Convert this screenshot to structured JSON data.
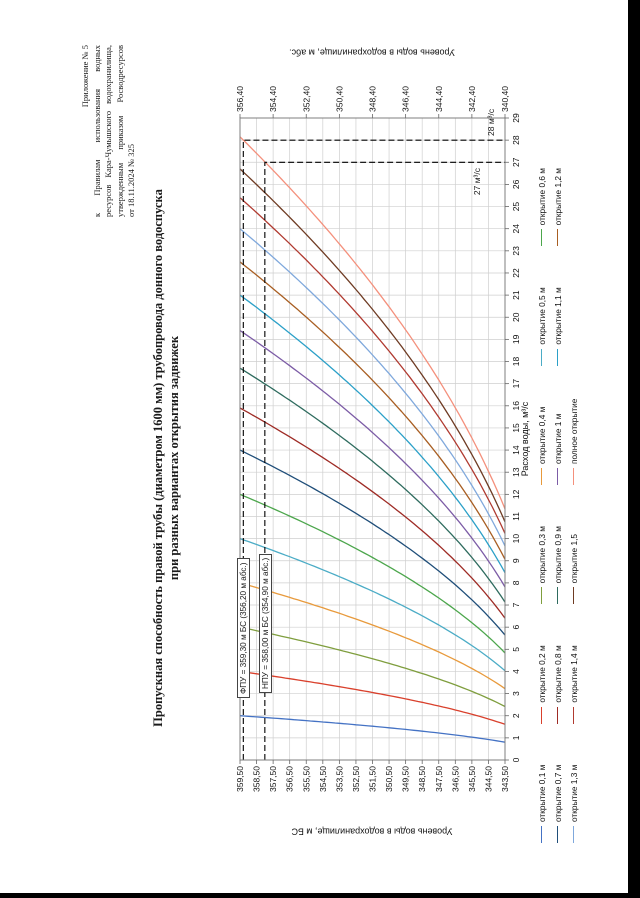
{
  "page": {
    "header_lines": [
      "Приложение № 5",
      "к Правилам использования водных",
      "ресурсов Кара-Чумышского водохранилища,",
      "утвержденным приказом Росводресурсов",
      "от 18.11.2024 № 325"
    ],
    "title_line1": "Пропускная способность правой трубы (диаметром 1600 мм) трубопровода донного водоспуска",
    "title_line2": "при разных вариантах открытия задвижек"
  },
  "chart_data": {
    "type": "line",
    "title": "Пропускная способность правой трубы (диаметром 1600 мм) трубопровода донного водоспуска при разных вариантах открытия задвижек",
    "xlabel": "Расход воды, м³/с",
    "ylabel_left": "Уровень воды в водохранилище, м БС",
    "ylabel_right": "Уровень воды в водохранилище, м абс.",
    "xlim": [
      0,
      29
    ],
    "ylim_left": [
      343.5,
      359.5
    ],
    "ylim_right": [
      340.4,
      356.4
    ],
    "grid": true,
    "legend_position": "bottom",
    "x_ticks": [
      "0",
      "1",
      "2",
      "3",
      "4",
      "5",
      "6",
      "7",
      "8",
      "9",
      "10",
      "11",
      "12",
      "13",
      "14",
      "15",
      "16",
      "17",
      "18",
      "19",
      "20",
      "21",
      "22",
      "23",
      "24",
      "25",
      "26",
      "27",
      "28",
      "29"
    ],
    "y_ticks_left": [
      "343,50",
      "344,50",
      "345,50",
      "346,50",
      "347,50",
      "348,50",
      "349,50",
      "350,50",
      "351,50",
      "352,50",
      "353,50",
      "354,50",
      "355,50",
      "356,50",
      "357,50",
      "358,50",
      "359,50"
    ],
    "y_ticks_right": [
      "340,40",
      "342,40",
      "344,40",
      "346,40",
      "348,40",
      "350,40",
      "352,40",
      "354,40",
      "356,40"
    ],
    "sill_level_bs": 340.4,
    "sample_levels_bs": [
      343.5,
      347.5,
      351.5,
      355.5,
      359.5
    ],
    "series": [
      {
        "name": "открытие 0,1 м",
        "color": "#4472C4",
        "q_max": 2.0,
        "q_at_levels": [
          0.8,
          1.2,
          1.5,
          1.8,
          2.0
        ]
      },
      {
        "name": "открытие 0,2 м",
        "color": "#D9402C",
        "q_max": 4.0,
        "q_at_levels": [
          1.6,
          2.4,
          3.0,
          3.6,
          4.0
        ]
      },
      {
        "name": "открытие 0,3 м",
        "color": "#7F9E3E",
        "q_max": 6.0,
        "q_at_levels": [
          2.4,
          3.7,
          4.6,
          5.3,
          6.0
        ]
      },
      {
        "name": "открытие 0,4 м",
        "color": "#E89A3C",
        "q_max": 8.0,
        "q_at_levels": [
          3.2,
          4.9,
          6.1,
          7.1,
          8.0
        ]
      },
      {
        "name": "открытие 0,5 м",
        "color": "#4BACC6",
        "q_max": 10.0,
        "q_at_levels": [
          4.0,
          6.1,
          7.6,
          8.9,
          10.0
        ]
      },
      {
        "name": "открытие 0,6 м",
        "color": "#4CA64C",
        "q_max": 12.0,
        "q_at_levels": [
          4.8,
          7.3,
          9.1,
          10.7,
          12.0
        ]
      },
      {
        "name": "открытие 0,7 м",
        "color": "#1F4E79",
        "q_max": 14.0,
        "q_at_levels": [
          5.6,
          8.5,
          10.7,
          12.4,
          14.0
        ]
      },
      {
        "name": "открытие 0,8 м",
        "color": "#9E2B25",
        "q_max": 15.9,
        "q_at_levels": [
          6.4,
          9.7,
          12.1,
          14.1,
          15.9
        ]
      },
      {
        "name": "открытие 0,9 м",
        "color": "#2E6B5E",
        "q_max": 17.7,
        "q_at_levels": [
          7.1,
          10.8,
          13.5,
          15.7,
          17.7
        ]
      },
      {
        "name": "открытие 1 м",
        "color": "#7C5CA6",
        "q_max": 19.4,
        "q_at_levels": [
          7.8,
          11.8,
          14.8,
          17.2,
          19.4
        ]
      },
      {
        "name": "открытие 1,1 м",
        "color": "#2BA0C8",
        "q_max": 21.0,
        "q_at_levels": [
          8.5,
          12.8,
          16.0,
          18.7,
          21.0
        ]
      },
      {
        "name": "открытие 1,2 м",
        "color": "#A85E22",
        "q_max": 22.5,
        "q_at_levels": [
          9.1,
          13.7,
          17.1,
          20.0,
          22.5
        ]
      },
      {
        "name": "открытие 1,3 м",
        "color": "#7FA8DC",
        "q_max": 24.0,
        "q_at_levels": [
          9.7,
          14.6,
          18.3,
          21.3,
          24.0
        ]
      },
      {
        "name": "открытие 1,4 м",
        "color": "#B03A30",
        "q_max": 25.4,
        "q_at_levels": [
          10.2,
          15.5,
          19.4,
          22.6,
          25.4
        ]
      },
      {
        "name": "открытие 1,5",
        "color": "#6E3B23",
        "q_max": 26.7,
        "q_at_levels": [
          10.8,
          16.3,
          20.3,
          23.7,
          26.7
        ]
      },
      {
        "name": "полное открытие",
        "color": "#F4907C",
        "q_max": 28.15,
        "q_at_levels": [
          11.3,
          17.2,
          21.4,
          25.0,
          28.15
        ]
      }
    ],
    "annotations": {
      "fpu": {
        "label": "ФПУ = 359,30 м БС (356,20 м абс.)",
        "level_bs": 359.3,
        "q_dash": 28,
        "q_label": "28 м³/с"
      },
      "npu": {
        "label": "НПУ = 358,00 м БС (354,90 м абс.)",
        "level_bs": 358.0,
        "q_dash": 27,
        "q_label": "27 м³/с"
      }
    }
  }
}
